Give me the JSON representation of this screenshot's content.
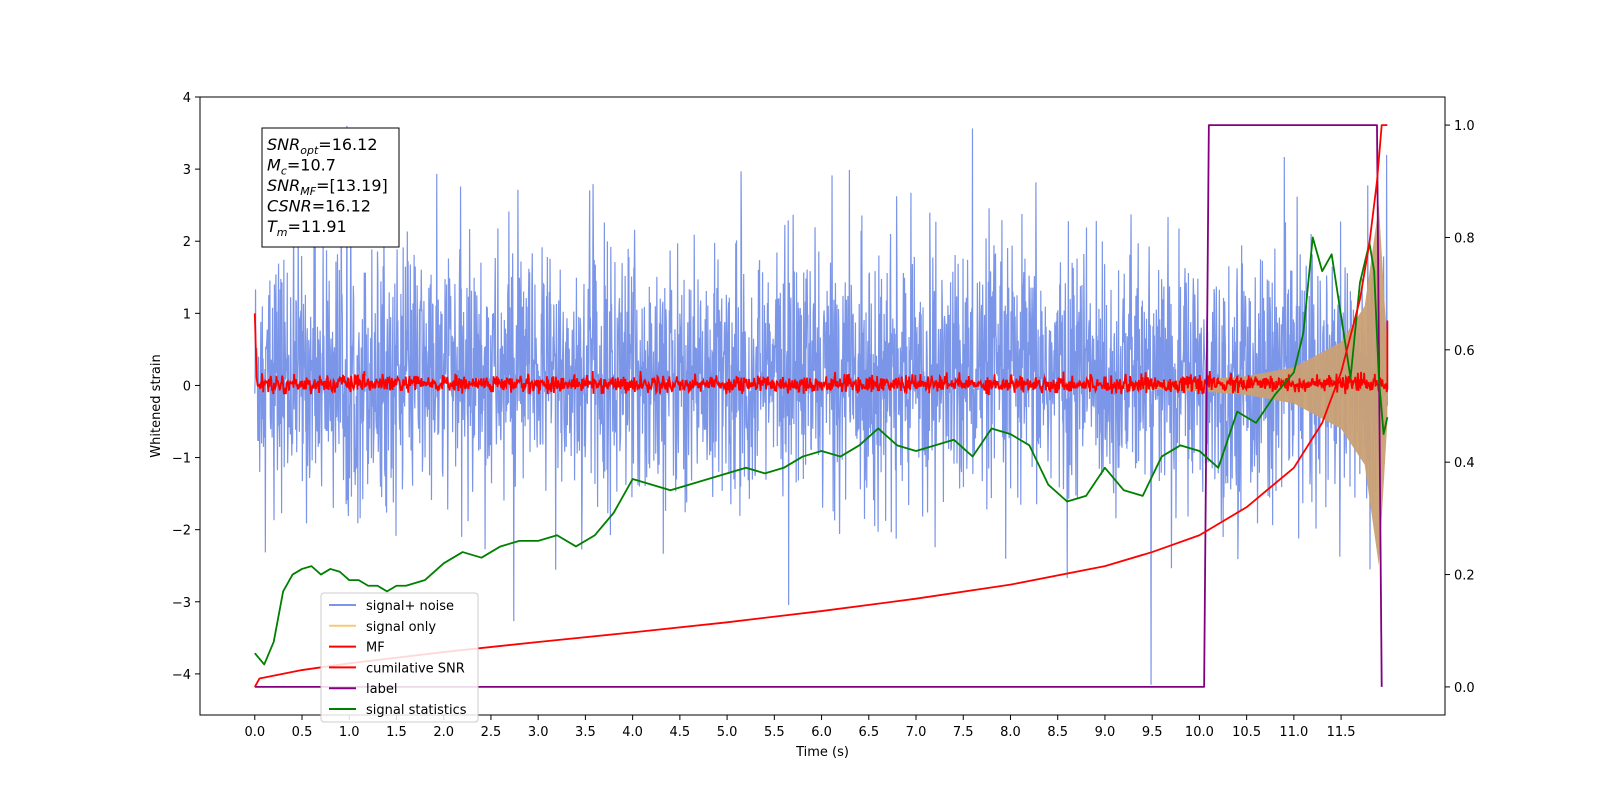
{
  "chart_data": {
    "type": "line",
    "title": "",
    "xlabel": "Time (s)",
    "ylabel": "Whitened strain",
    "xlim": [
      -0.58,
      12.6
    ],
    "ylim": [
      -4.57,
      4.0
    ],
    "y2lim": [
      -0.05,
      1.05
    ],
    "x_ticks": [
      "0.0",
      "0.5",
      "1.0",
      "1.5",
      "2.0",
      "2.5",
      "3.0",
      "3.5",
      "4.0",
      "4.5",
      "5.0",
      "5.5",
      "6.0",
      "6.5",
      "7.0",
      "7.5",
      "8.0",
      "8.5",
      "9.0",
      "9.5",
      "10.0",
      "10.5",
      "11.0",
      "11.5"
    ],
    "y_ticks": [
      "4",
      "3",
      "2",
      "1",
      "0",
      "−1",
      "−2",
      "−3",
      "−4"
    ],
    "y2_ticks": [
      "1.0",
      "0.8",
      "0.6",
      "0.4",
      "0.2",
      "0.0"
    ],
    "grid": false,
    "legend_placement": "lower-left",
    "annotation": {
      "lines": [
        {
          "sym": "SNR",
          "sub": "opt",
          "val": "=16.12"
        },
        {
          "sym": "M",
          "sub": "c",
          "val": "=10.7"
        },
        {
          "sym": "SNR",
          "sub": "MF",
          "val": "=[13.19]"
        },
        {
          "sym": "CSNR",
          "sub": "",
          "val": "=16.12"
        },
        {
          "sym": "T",
          "sub": "m",
          "val": "=11.91"
        }
      ]
    },
    "series": [
      {
        "name": "signal+ noise",
        "color": "#7b95e8",
        "axis": "left",
        "envelope": {
          "x": [
            0,
            11.99
          ],
          "typical_range": [
            -2.0,
            2.4
          ],
          "peak_max": 3.6,
          "peak_min": -4.15
        }
      },
      {
        "name": "signal only",
        "color": "#f5c97a",
        "axis": "left",
        "envelope": {
          "x": [
            9.0,
            10.0,
            10.5,
            11.0,
            11.5,
            11.75,
            11.9,
            11.99
          ],
          "amplitude": [
            0.03,
            0.08,
            0.13,
            0.25,
            0.6,
            1.1,
            2.5,
            0.5
          ]
        }
      },
      {
        "name": "MF",
        "color": "#ff0000",
        "axis": "left",
        "x": [
          0,
          0.02,
          0.05,
          11.99
        ],
        "y_start": 1.0,
        "noise_range": [
          -0.12,
          0.2
        ]
      },
      {
        "name": "cumilative SNR",
        "color": "#ff0000",
        "axis": "right",
        "x": [
          0.0,
          0.05,
          0.5,
          1.0,
          2.0,
          3.0,
          4.0,
          5.0,
          6.0,
          7.0,
          8.0,
          9.0,
          9.5,
          10.0,
          10.5,
          11.0,
          11.3,
          11.5,
          11.7,
          11.8,
          11.88,
          11.93,
          11.99
        ],
        "y": [
          0.0,
          0.015,
          0.03,
          0.042,
          0.062,
          0.08,
          0.097,
          0.115,
          0.135,
          0.157,
          0.182,
          0.215,
          0.24,
          0.27,
          0.32,
          0.39,
          0.47,
          0.56,
          0.69,
          0.79,
          0.9,
          1.0,
          1.0
        ]
      },
      {
        "name": "label",
        "color": "#800080",
        "axis": "right",
        "x": [
          0.0,
          10.05,
          10.1,
          11.88,
          11.93
        ],
        "y": [
          0.0,
          0.0,
          1.0,
          1.0,
          0.0
        ]
      },
      {
        "name": "signal statistics",
        "color": "#008000",
        "axis": "right",
        "x": [
          0.0,
          0.1,
          0.2,
          0.3,
          0.4,
          0.5,
          0.6,
          0.7,
          0.8,
          0.9,
          1.0,
          1.1,
          1.2,
          1.3,
          1.4,
          1.5,
          1.6,
          1.8,
          2.0,
          2.2,
          2.4,
          2.6,
          2.8,
          3.0,
          3.2,
          3.4,
          3.6,
          3.8,
          4.0,
          4.2,
          4.4,
          4.6,
          4.8,
          5.0,
          5.2,
          5.4,
          5.6,
          5.8,
          6.0,
          6.2,
          6.4,
          6.6,
          6.8,
          7.0,
          7.2,
          7.4,
          7.6,
          7.8,
          8.0,
          8.2,
          8.4,
          8.6,
          8.8,
          9.0,
          9.2,
          9.4,
          9.6,
          9.8,
          10.0,
          10.2,
          10.4,
          10.6,
          10.8,
          11.0,
          11.1,
          11.2,
          11.3,
          11.4,
          11.5,
          11.6,
          11.7,
          11.8,
          11.85,
          11.9,
          11.95,
          11.99
        ],
        "y": [
          0.06,
          0.04,
          0.08,
          0.17,
          0.2,
          0.21,
          0.215,
          0.2,
          0.21,
          0.205,
          0.19,
          0.19,
          0.18,
          0.18,
          0.17,
          0.18,
          0.18,
          0.19,
          0.22,
          0.24,
          0.23,
          0.25,
          0.26,
          0.26,
          0.27,
          0.25,
          0.27,
          0.31,
          0.37,
          0.36,
          0.35,
          0.36,
          0.37,
          0.38,
          0.39,
          0.38,
          0.39,
          0.41,
          0.42,
          0.41,
          0.43,
          0.46,
          0.43,
          0.42,
          0.43,
          0.44,
          0.41,
          0.46,
          0.45,
          0.43,
          0.36,
          0.33,
          0.34,
          0.39,
          0.35,
          0.34,
          0.41,
          0.43,
          0.42,
          0.39,
          0.49,
          0.47,
          0.52,
          0.56,
          0.63,
          0.8,
          0.74,
          0.77,
          0.66,
          0.55,
          0.72,
          0.79,
          0.74,
          0.55,
          0.45,
          0.48
        ]
      }
    ]
  }
}
